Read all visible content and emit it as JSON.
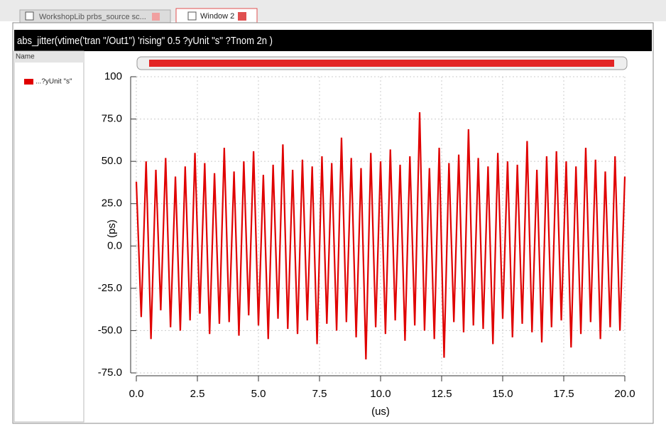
{
  "tabs": [
    "WorkshopLib prbs_source sc...",
    "Window 2"
  ],
  "legend_header": "Name",
  "chart_data": {
    "type": "line",
    "title": "abs_jitter(vtime('tran \"/Out1\") 'rising\" 0.5 ?yUnit \"s\" ?Tnom 2n )",
    "xlabel": "(us)",
    "ylabel": "(ps)",
    "grid": true,
    "xlim": [
      0,
      20
    ],
    "ylim": [
      -75,
      100
    ],
    "xticks": [
      {
        "value": 0,
        "label": "0.0"
      },
      2.5,
      {
        "value": 5,
        "label": "5.0"
      },
      7.5,
      {
        "value": 10,
        "label": "10.0"
      },
      12.5,
      {
        "value": 15,
        "label": "15.0"
      },
      17.5,
      {
        "value": 20,
        "label": "20.0"
      }
    ],
    "yticks": [
      {
        "value": -75,
        "label": "-75.0"
      },
      {
        "value": -50,
        "label": "-50.0"
      },
      {
        "value": -25,
        "label": "-25.0"
      },
      {
        "value": 0,
        "label": "0.0"
      },
      {
        "value": 25,
        "label": "25.0"
      },
      {
        "value": 50,
        "label": "50.0"
      },
      {
        "value": 75,
        "label": "75.0"
      },
      100
    ],
    "x": [
      0,
      0.2,
      0.4,
      0.6,
      0.8,
      1,
      1.2,
      1.4,
      1.6,
      1.8,
      2,
      2.2,
      2.4,
      2.6,
      2.8,
      3,
      3.2,
      3.4,
      3.6,
      3.8,
      4,
      4.2,
      4.4,
      4.6,
      4.8,
      5,
      5.2,
      5.4,
      5.6,
      5.8,
      6,
      6.2,
      6.4,
      6.6,
      6.8,
      7,
      7.2,
      7.4,
      7.6,
      7.8,
      8,
      8.2,
      8.4,
      8.6,
      8.8,
      9,
      9.2,
      9.4,
      9.6,
      9.8,
      10,
      10.2,
      10.4,
      10.6,
      10.8,
      11,
      11.2,
      11.4,
      11.6,
      11.8,
      12,
      12.2,
      12.4,
      12.6,
      12.8,
      13,
      13.2,
      13.4,
      13.6,
      13.8,
      14,
      14.2,
      14.4,
      14.6,
      14.8,
      15,
      15.2,
      15.4,
      15.6,
      15.8,
      16,
      16.2,
      16.4,
      16.6,
      16.8,
      17,
      17.2,
      17.4,
      17.6,
      17.8,
      18,
      18.2,
      18.4,
      18.6,
      18.8,
      19,
      19.2,
      19.4,
      19.6,
      19.8,
      20
    ],
    "series": [
      {
        "name": "...?yUnit \"s\"",
        "color": "#e00000",
        "values": [
          38,
          -42,
          50,
          -55,
          45,
          -38,
          52,
          -48,
          41,
          -50,
          47,
          -44,
          55,
          -40,
          49,
          -52,
          43,
          -46,
          58,
          -45,
          44,
          -53,
          50,
          -41,
          56,
          -47,
          42,
          -55,
          48,
          -43,
          60,
          -49,
          45,
          -52,
          51,
          -44,
          47,
          -58,
          53,
          -46,
          49,
          -50,
          64,
          -45,
          52,
          -54,
          46,
          -67,
          55,
          -48,
          50,
          -52,
          57,
          -44,
          48,
          -56,
          53,
          -47,
          79,
          -50,
          46,
          -55,
          58,
          -66,
          49,
          -45,
          54,
          -51,
          69,
          -47,
          52,
          -49,
          47,
          -58,
          55,
          -43,
          50,
          -54,
          48,
          -46,
          62,
          -51,
          45,
          -57,
          53,
          -48,
          56,
          -44,
          50,
          -60,
          47,
          -52,
          58,
          -45,
          51,
          -55,
          44,
          -48,
          53,
          -50,
          41
        ]
      }
    ]
  }
}
